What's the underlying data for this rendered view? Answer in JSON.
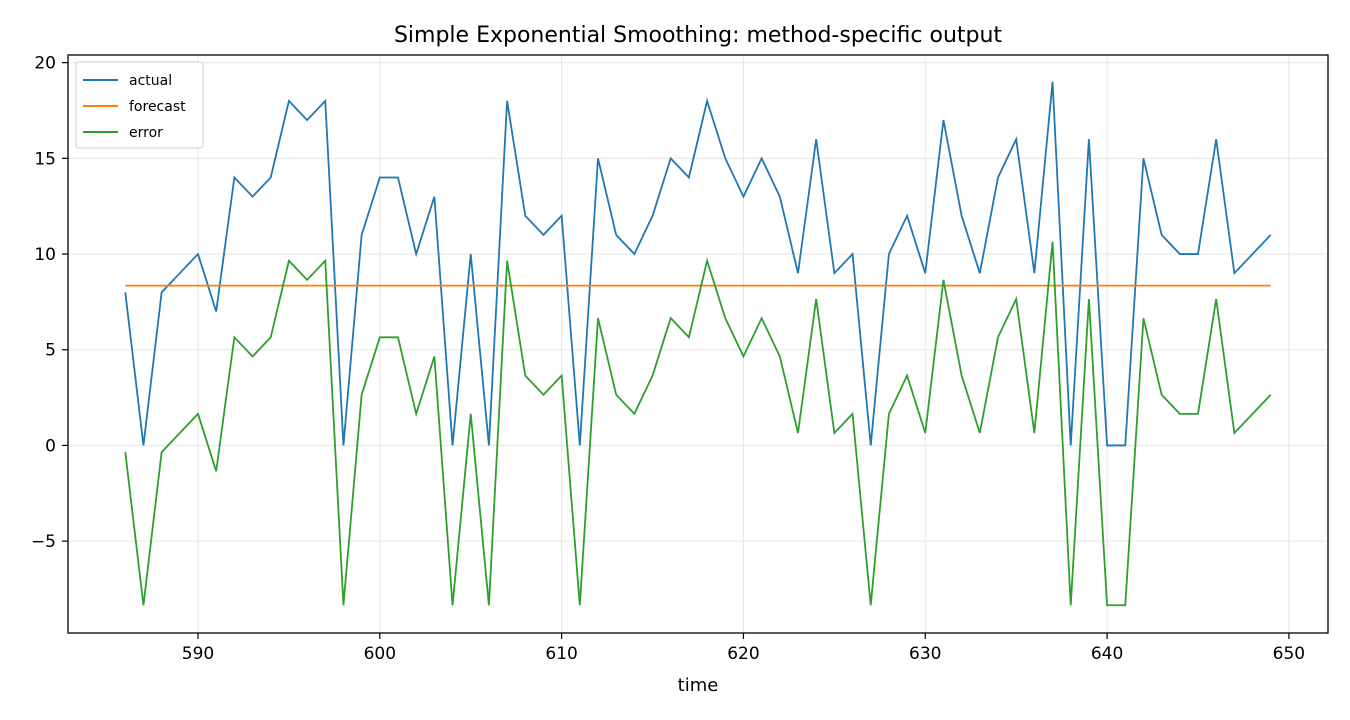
{
  "chart_data": {
    "type": "line",
    "title": "Simple Exponential Smoothing: method-specific output",
    "xlabel": "time",
    "ylabel": "",
    "xlim": [
      582.85,
      652.15
    ],
    "ylim": [
      -9.8,
      20.4
    ],
    "xticks": [
      590,
      600,
      610,
      620,
      630,
      640,
      650
    ],
    "yticks": [
      -5,
      0,
      5,
      10,
      15,
      20
    ],
    "ytick_labels": [
      "−5",
      "0",
      "5",
      "10",
      "15",
      "20"
    ],
    "grid": true,
    "legend_position": "upper-left",
    "x": [
      586,
      587,
      588,
      589,
      590,
      591,
      592,
      593,
      594,
      595,
      596,
      597,
      598,
      599,
      600,
      601,
      602,
      603,
      604,
      605,
      606,
      607,
      608,
      609,
      610,
      611,
      612,
      613,
      614,
      615,
      616,
      617,
      618,
      619,
      620,
      621,
      622,
      623,
      624,
      625,
      626,
      627,
      628,
      629,
      630,
      631,
      632,
      633,
      634,
      635,
      636,
      637,
      638,
      639,
      640,
      641,
      642,
      643,
      644,
      645,
      646,
      647,
      648,
      649
    ],
    "series": [
      {
        "name": "actual",
        "color": "#1f77b4",
        "values": [
          8,
          0,
          8,
          9,
          10,
          7,
          14,
          13,
          14,
          18,
          17,
          18,
          0,
          11,
          14,
          14,
          10,
          13,
          0,
          10,
          0,
          18,
          12,
          11,
          12,
          0,
          15,
          11,
          10,
          12,
          15,
          14,
          18,
          15,
          13,
          15,
          13,
          9,
          16,
          9,
          10,
          0,
          10,
          12,
          9,
          17,
          12,
          9,
          14,
          16,
          9,
          19,
          0,
          16,
          0,
          0,
          15,
          11,
          10,
          10,
          16,
          9,
          10,
          11
        ]
      },
      {
        "name": "forecast",
        "color": "#ff7f0e",
        "values": [
          8.35,
          8.35,
          8.35,
          8.35,
          8.35,
          8.35,
          8.35,
          8.35,
          8.35,
          8.35,
          8.35,
          8.35,
          8.35,
          8.35,
          8.35,
          8.35,
          8.35,
          8.35,
          8.35,
          8.35,
          8.35,
          8.35,
          8.35,
          8.35,
          8.35,
          8.35,
          8.35,
          8.35,
          8.35,
          8.35,
          8.35,
          8.35,
          8.35,
          8.35,
          8.35,
          8.35,
          8.35,
          8.35,
          8.35,
          8.35,
          8.35,
          8.35,
          8.35,
          8.35,
          8.35,
          8.35,
          8.35,
          8.35,
          8.35,
          8.35,
          8.35,
          8.35,
          8.35,
          8.35,
          8.35,
          8.35,
          8.35,
          8.35,
          8.35,
          8.35,
          8.35,
          8.35,
          8.35,
          8.35
        ]
      },
      {
        "name": "error",
        "color": "#2ca02c",
        "values": [
          -0.35,
          -8.35,
          -0.35,
          0.65,
          1.65,
          -1.35,
          5.65,
          4.65,
          5.65,
          9.65,
          8.65,
          9.65,
          -8.35,
          2.65,
          5.65,
          5.65,
          1.65,
          4.65,
          -8.35,
          1.65,
          -8.35,
          9.65,
          3.65,
          2.65,
          3.65,
          -8.35,
          6.65,
          2.65,
          1.65,
          3.65,
          6.65,
          5.65,
          9.65,
          6.65,
          4.65,
          6.65,
          4.65,
          0.65,
          7.65,
          0.65,
          1.65,
          -8.35,
          1.65,
          3.65,
          0.65,
          8.65,
          3.65,
          0.65,
          5.65,
          7.65,
          0.65,
          10.65,
          -8.35,
          7.65,
          -8.35,
          -8.35,
          6.65,
          2.65,
          1.65,
          1.65,
          7.65,
          0.65,
          1.65,
          2.65
        ]
      }
    ]
  }
}
